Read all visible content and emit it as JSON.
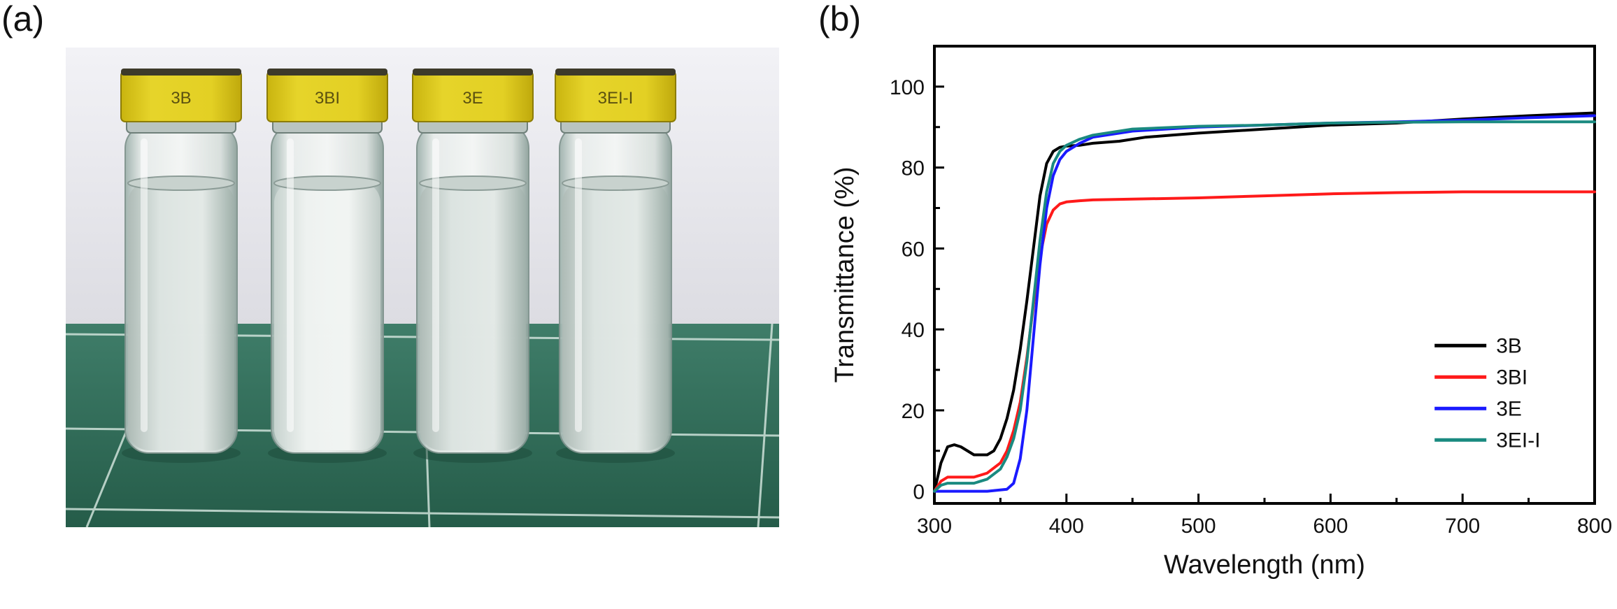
{
  "figure": {
    "panel_a_label": "(a)",
    "panel_b_label": "(b)"
  },
  "photo": {
    "vials": [
      {
        "label": "3B",
        "liquid": "clear"
      },
      {
        "label": "3BI",
        "liquid": "milky"
      },
      {
        "label": "3E",
        "liquid": "clear"
      },
      {
        "label": "3EI-I",
        "liquid": "clear"
      }
    ],
    "colors": {
      "wall": "#e9e9ee",
      "mat": "#2f6e59",
      "grid_line": "#cfe2da",
      "cap": "#e2cf1c"
    }
  },
  "chart_data": {
    "type": "line",
    "title": "",
    "xlabel": "Wavelength (nm)",
    "ylabel": "Transmittance (%)",
    "xlim": [
      300,
      800
    ],
    "ylim": [
      -3,
      110
    ],
    "xticks": [
      300,
      400,
      500,
      600,
      700,
      800
    ],
    "yticks": [
      0,
      20,
      40,
      60,
      80,
      100
    ],
    "legend_position": "lower-right",
    "grid": false,
    "series": [
      {
        "name": "3B",
        "color": "#000000",
        "x": [
          300,
          305,
          310,
          315,
          320,
          330,
          340,
          345,
          350,
          355,
          360,
          365,
          370,
          375,
          380,
          385,
          390,
          395,
          400,
          410,
          420,
          440,
          460,
          480,
          500,
          550,
          600,
          650,
          700,
          750,
          800
        ],
        "y": [
          0,
          7,
          11,
          11.5,
          11,
          9,
          9,
          10,
          13,
          18,
          25,
          35,
          47,
          60,
          73,
          81,
          84,
          85,
          85.3,
          85.5,
          86,
          86.5,
          87.5,
          88,
          88.5,
          89.5,
          90.5,
          91,
          92,
          92.8,
          93.5
        ]
      },
      {
        "name": "3BI",
        "color": "#ff1a1a",
        "x": [
          300,
          305,
          310,
          320,
          330,
          340,
          350,
          355,
          360,
          365,
          370,
          375,
          380,
          385,
          390,
          395,
          400,
          410,
          420,
          450,
          500,
          550,
          600,
          650,
          700,
          750,
          800
        ],
        "y": [
          0,
          2.5,
          3.5,
          3.5,
          3.5,
          4.5,
          7,
          10,
          15,
          22,
          33,
          46,
          58,
          66,
          69.5,
          71,
          71.5,
          71.8,
          72,
          72.2,
          72.5,
          73,
          73.5,
          73.8,
          74,
          74,
          74
        ]
      },
      {
        "name": "3E",
        "color": "#1a1aff",
        "x": [
          300,
          320,
          340,
          355,
          360,
          365,
          370,
          375,
          380,
          385,
          390,
          395,
          400,
          410,
          420,
          450,
          500,
          550,
          600,
          650,
          700,
          750,
          800
        ],
        "y": [
          0,
          0,
          0,
          0.5,
          2,
          8,
          20,
          38,
          56,
          70,
          78,
          82,
          84,
          86,
          87.5,
          89,
          90,
          90.5,
          91,
          91.3,
          91.7,
          92.3,
          92.8
        ]
      },
      {
        "name": "3EI-I",
        "color": "#1a8a80",
        "x": [
          300,
          305,
          310,
          320,
          330,
          340,
          350,
          355,
          360,
          365,
          370,
          375,
          380,
          385,
          390,
          395,
          400,
          410,
          420,
          450,
          500,
          550,
          600,
          650,
          700,
          750,
          800
        ],
        "y": [
          0,
          1.5,
          2,
          2,
          2,
          3,
          5.5,
          8.5,
          13,
          20,
          32,
          47,
          62,
          74,
          81,
          84,
          85.5,
          87,
          88,
          89.5,
          90.2,
          90.5,
          91,
          91.2,
          91.3,
          91.3,
          91.3
        ]
      }
    ]
  }
}
